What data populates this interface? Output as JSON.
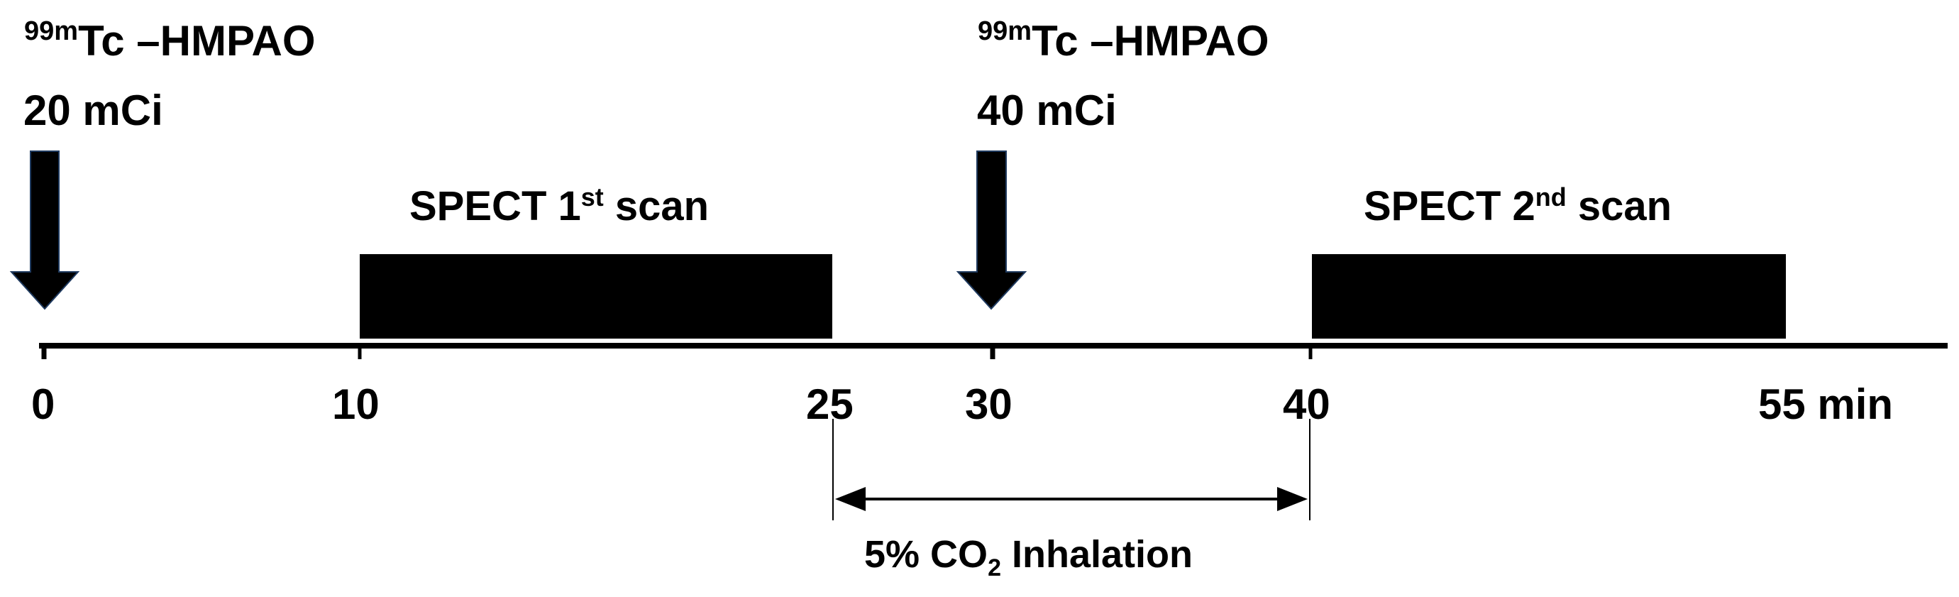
{
  "injections": [
    {
      "isotope_mass": "99m",
      "isotope_symbol": "Tc",
      "compound": " –HMPAO",
      "dose": "20 mCi",
      "time": 0
    },
    {
      "isotope_mass": "99m",
      "isotope_symbol": "Tc",
      "compound": " –HMPAO",
      "dose": "40 mCi",
      "time": 30
    }
  ],
  "scans": [
    {
      "prefix": "SPECT 1",
      "ordinal": "st",
      "suffix": " scan",
      "start": 10,
      "end": 25
    },
    {
      "prefix": "SPECT 2",
      "ordinal": "nd",
      "suffix": " scan",
      "start": 40,
      "end": 55
    }
  ],
  "ticks": [
    "0",
    "10",
    "25",
    "30",
    "40",
    "55 min"
  ],
  "inhalation": {
    "prefix": "5% CO",
    "subscript": "2",
    "suffix": " Inhalation",
    "start": 25,
    "end": 40
  },
  "colors": {
    "ink": "#000000",
    "arrow_outline": "#1f3a5f"
  }
}
